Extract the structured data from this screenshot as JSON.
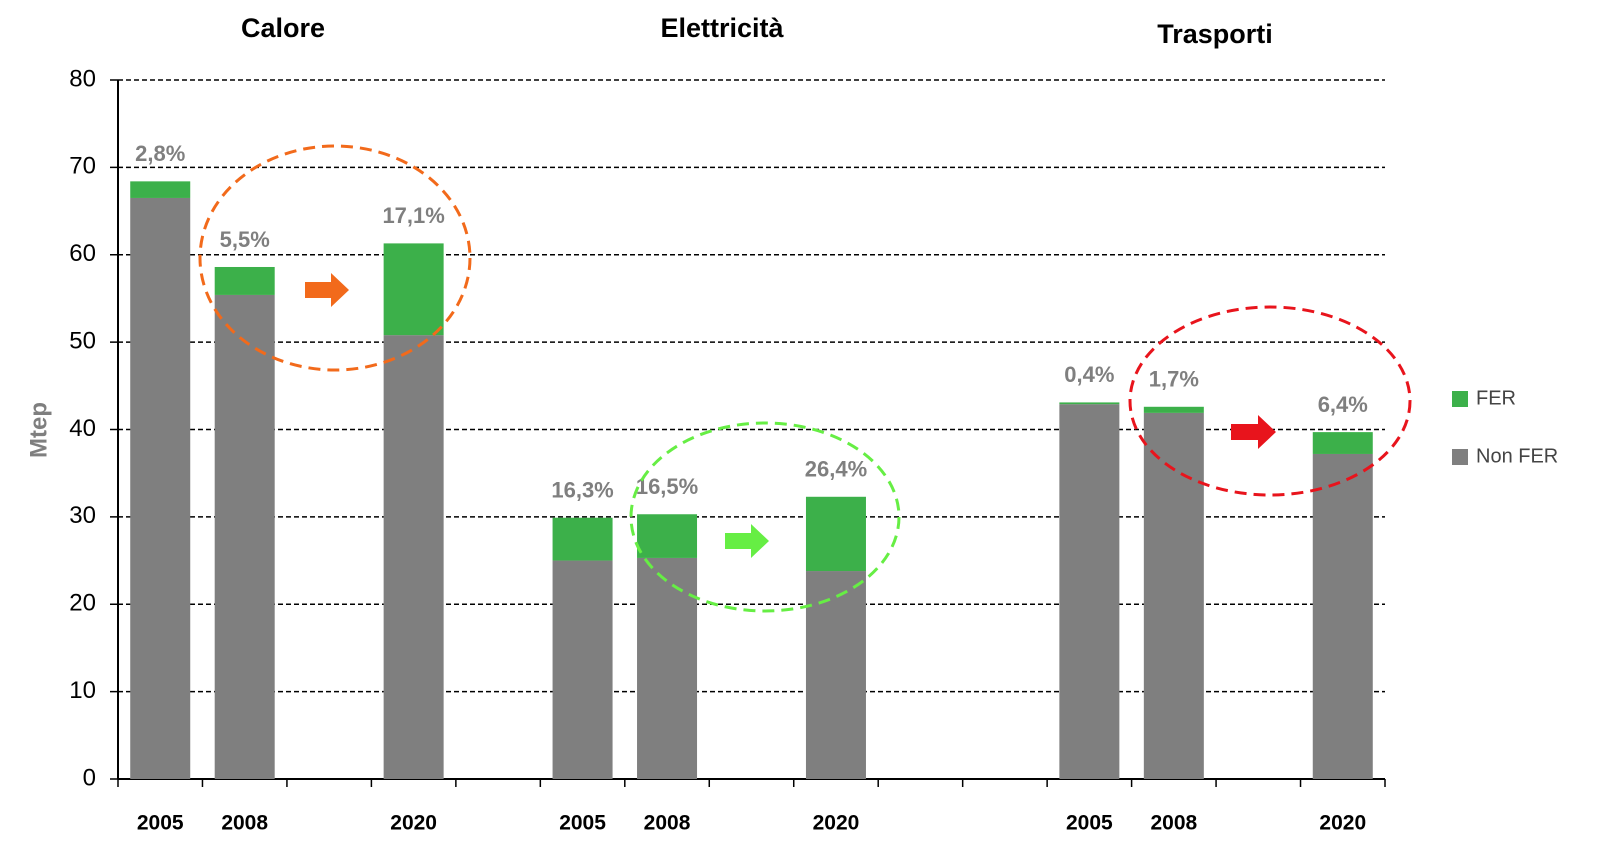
{
  "chart_data": {
    "type": "stacked_bar",
    "group_labels": [
      "Calore",
      "Elettricità",
      "Trasporti"
    ],
    "categories": [
      "2005",
      "2008",
      null,
      "2020",
      null,
      "2005",
      "2008",
      null,
      "2020",
      null,
      null,
      "2005",
      "2008",
      null,
      "2020"
    ],
    "series": [
      {
        "name": "Non FER",
        "color": "#7f7f7f",
        "values": [
          66.5,
          55.4,
          null,
          50.8,
          null,
          25.0,
          25.3,
          null,
          23.8,
          null,
          null,
          42.9,
          41.9,
          null,
          37.2
        ]
      },
      {
        "name": "FER",
        "color": "#3cb04a",
        "values": [
          1.9,
          3.2,
          null,
          10.5,
          null,
          4.9,
          5.0,
          null,
          8.5,
          null,
          null,
          0.2,
          0.7,
          null,
          2.5
        ]
      }
    ],
    "share_labels": [
      "2,8%",
      "5,5%",
      null,
      "17,1%",
      null,
      "16,3%",
      "16,5%",
      null,
      "26,4%",
      null,
      null,
      "0,4%",
      "1,7%",
      null,
      "6,4%"
    ],
    "ylabel": "Mtep",
    "ylim": [
      0,
      80
    ],
    "yticks": [
      0,
      10,
      20,
      30,
      40,
      50,
      60,
      70,
      80
    ],
    "grid": true
  }
}
